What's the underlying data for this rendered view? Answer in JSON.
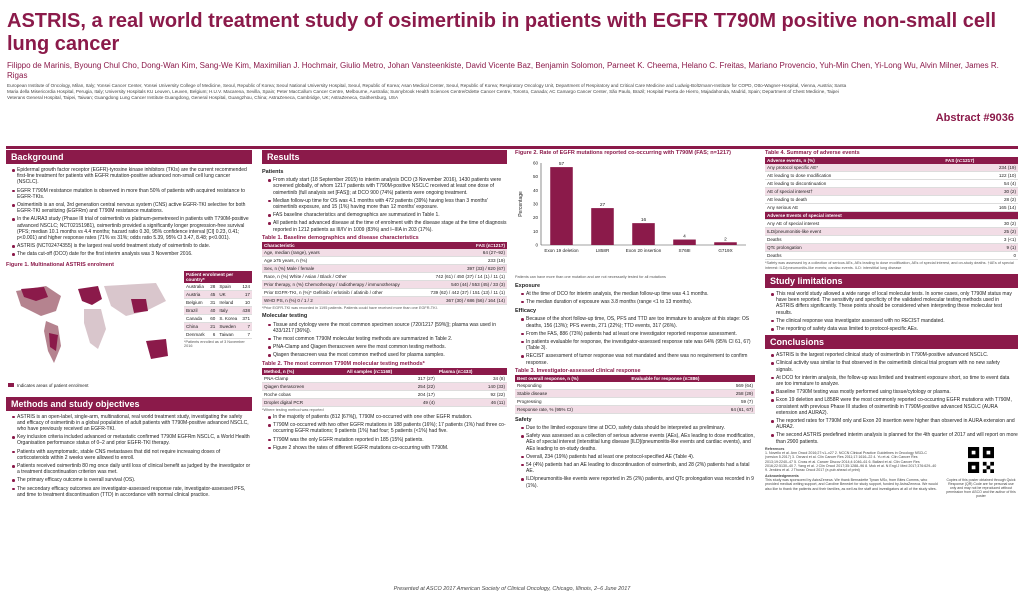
{
  "header": {
    "title": "ASTRIS, a real world treatment study of osimertinib in patients with EGFR T790M positive non-small cell lung cancer",
    "authors": "Filippo de Marinis, Byoung Chul Cho, Dong-Wan Kim, Sang-We Kim, Maximilian J. Hochmair, Giulio Metro, Johan Vansteenkiste, David Vicente Baz, Benjamin Solomon, Parneet K. Cheema, Helano C. Freitas, Mariano Provencio, Yuh-Min Chen, Yi-Long Wu, Alvin Milner, James R. Rigas",
    "affiliations": "European Institute of Oncology, Milan, Italy; Yonsei Cancer Center, Yonsei University College of Medicine, Seoul, Republic of Korea; Seoul National University Hospital, Seoul, Republic of Korea; Asan Medical Center, Seoul, Republic of Korea; Respiratory Oncology Unit, Department of Respiratory and Critical Care Medicine and Ludwig-Boltzmann-Institute for COPD, Otto-Wagner-Hospital, Vienna, Austria; Santa Maria della Misericordia Hospital, Perugia, Italy; University Hospitals KU Leuven, Leuven, Belgium; H.U.V. Macarena, Sevilla, Spain; Peter MacCallum Cancer Centre, Melbourne, Australia; Sunnybrook Health Sciences Centre/Odette Cancer Centre, Toronto, Canada; AC Camargo Cancer Center, São Paulo, Brazil; Hospital Puerta de Hierro, Majadahonda, Madrid, Spain; Department of Chest Medicine, Taipei Veterans General Hospital, Taipei, Taiwan; Guangdong Lung Cancer Institute Guangdong, General Hospital, Guangzhou, China; AstraZeneca, Cambridge, UK; AstraZeneca, Gaithersburg, USA",
    "abstract": "Abstract #9036"
  },
  "background": {
    "heading": "Background",
    "bullets": [
      "Epidermal growth factor receptor (EGFR)-tyrosine kinase inhibitors (TKIs) are the current recommended first-line treatment for patients with EGFR mutation-positive advanced non-small cell lung cancer (NSCLC).",
      "EGFR T790M resistance mutation is observed in more than 50% of patients with acquired resistance to EGFR-TKIs.",
      "Osimertinib is an oral, 3rd generation central nervous system (CNS) active EGFR-TKI selective for both EGFR-TKI sensitizing (EGFRm) and T790M resistance mutations.",
      "In the AURA3 study (Phase III trial of osimertinib vs platinum-pemetrexed in patients with T790M-positive advanced NSCLC; NCT02151981), osimertinib provided a significantly longer progression-free survival (PFS; median 10.1 months vs 4.4 months; hazard ratio 0.30, 95% confidence interval [CI] 0.23, 0.41; p<0.001) and higher response rates (71% vs 31%; odds ratio 5.39, 95% CI 3.47, 8.48; p<0.001).",
      "ASTRIS (NCT02474355) is the largest real world treatment study of osimertinib to date.",
      "The data cut-off (DCO) date for the first interim analysis was 3 November 2016."
    ]
  },
  "figure1": {
    "title": "Figure 1. Multinational ASTRIS enrolment",
    "table_header": "Patient enrolment per country*",
    "rows": [
      [
        "Australia",
        "28",
        "Spain",
        "124"
      ],
      [
        "Austria",
        "45",
        "UK",
        "17"
      ],
      [
        "Belgium",
        "31",
        "Ireland",
        "10"
      ],
      [
        "Brazil",
        "40",
        "Italy",
        "438"
      ],
      [
        "Canada",
        "60",
        "S. Korea",
        "371"
      ],
      [
        "China",
        "21",
        "Sweden",
        "7"
      ],
      [
        "Denmark",
        "6",
        "Taiwan",
        "7"
      ]
    ],
    "note": "*Patients enrolled as of 3 November 2016",
    "legend": "Indicates areas of patient enrolment"
  },
  "methods": {
    "heading": "Methods and study objectives",
    "bullets": [
      "ASTRIS is an open-label, single-arm, multinational, real world treatment study, investigating the safety and efficacy of osimertinib in a global population of adult patients with T790M-positive advanced NSCLC, who have previously received an EGFR-TKI.",
      "Key inclusion criteria included advanced or metastatic confirmed T790M EGFRm NSCLC, a World Health Organisation performance status of 0–2 and prior EGFR-TKI therapy.",
      "Patients with asymptomatic, stable CNS metastases that did not require increasing doses of corticosteroids within 2 weeks were allowed to enroll.",
      "Patients received osimertinib 80 mg once daily until loss of clinical benefit as judged by the investigator or a treatment discontinuation criterion was met.",
      "The primary efficacy outcome is overall survival (OS).",
      "The secondary efficacy outcomes are investigator-assessed response rate, investigator-assessed PFS, and time to treatment discontinuation (TTD) in accordance with normal clinical practice."
    ]
  },
  "results": {
    "heading": "Results",
    "patients_label": "Patients",
    "bullets": [
      "From study start (18 September 2015) to interim analysis DCO (3 November 2016), 1430 patients were screened globally, of whom 1217 patients with T790M-positive NSCLC received at least one dose of osimertinib (full analysis set [FAS]); at DCO 900 (74%) patients were ongoing treatment.",
      "Median follow-up time for OS was 4.1 months with 472 patients (39%) having less than 3 months' osimertinib exposure, and 15 (1%) having more than 12 months' exposure.",
      "FAS baseline characteristics and demographics are summarized in Table 1.",
      "All patients had advanced disease at the time of enrolment with the disease stage at the time of diagnosis reported in 1212 patients as III/IV in 1009 (83%) and I–IIIA in 203 (17%)."
    ]
  },
  "table1": {
    "title": "Table 1. Baseline demographics and disease characteristics",
    "col1": "Characteristic",
    "col2": "FAS (n=1217)",
    "rows": [
      [
        "Age, median (range), years",
        "64 (27–92)"
      ],
      [
        "Age ≥75 years, n (%)",
        "233 (19)"
      ],
      [
        "Sex, n (%) Male / female",
        "397 (33) / 820 (67)"
      ],
      [
        "Race, n (%) White / Asian / Black / Other",
        "742 (61) / 450 (37) / 14 (1) / 11 (1)"
      ],
      [
        "Prior therapy, n (%) Chemotherapy / radiotherapy / immunotherapy",
        "540 (44) / 553 (45) / 33 (3)"
      ],
      [
        "Prior EGFR-TKI, n (%)* Gefitinib / erlotinib / afatinib / other",
        "739 (62) / 442 (37) / 151 (13) / 11 (1)"
      ],
      [
        "WHO PS, n (%) 0 / 1 / 2",
        "367 (30) / 686 (56) / 164 (14)"
      ]
    ],
    "note": "*Prior EGFR-TKI was recorded in 1195 patients. Patients could have received more than one EGFR-TKI."
  },
  "molecular": {
    "label": "Molecular testing",
    "bullets": [
      "Tissue and cytology were the most common specimen source (720/1217 [59%]); plasma was used in 433/1217 [36%]).",
      "The most common T790M molecular testing methods are summarized in Table 2.",
      "PNA-Clamp and Qiagen therascreen were the most common testing methods.",
      "Qiagen therascreen was the most common method used for plasma samples."
    ]
  },
  "table2": {
    "title": "Table 2. The most common T790M molecular testing methods*",
    "cols": [
      "Method, n (%)",
      "All samples (n=1168)",
      "Plasma (n=433)"
    ],
    "rows": [
      [
        "PNA-Clamp",
        "317 (27)",
        "34 (8)"
      ],
      [
        "Qiagen therascreen",
        "254 (22)",
        "140 (33)"
      ],
      [
        "Roche cobas",
        "204 (17)",
        "92 (22)"
      ],
      [
        "Droplet digital PCR",
        "49 (4)",
        "46 (11)"
      ]
    ],
    "note": "*Where testing method was reported"
  },
  "t790": {
    "bullets": [
      "In the majority of patients (812 [67%]), T790M co-occurred with one other EGFR mutation.",
      "T790M co-occurred with two other EGFR mutations in 188 patients (16%); 17 patients (1%) had three co-occurring EGFR mutations; 9 patients (1%) had four; 5 patients (<1%) had five.",
      "T790M was the only EGFR mutation reported in 185 (15%) patients.",
      "Figure 2 shows the rates of different EGFR mutations co-occurring with T790M."
    ]
  },
  "chart_data": {
    "type": "bar",
    "title": "Figure 2. Rate of EGFR mutations reported co-occurring with T790M (FAS; n=1217)",
    "categories": [
      "Exon 19 deletion",
      "L858R",
      "Exon 20 insertion",
      "S768I",
      "G719X"
    ],
    "values": [
      57,
      27,
      16,
      4,
      2
    ],
    "ylabel": "Percentage",
    "ylim": [
      0,
      60
    ],
    "yticks": [
      0,
      10,
      20,
      30,
      40,
      50,
      60
    ],
    "color": "#8b1a4a",
    "note": "Patients can have more than one mutation and are not necessarily tested for all mutations"
  },
  "exposure": {
    "label": "Exposure",
    "bullets": [
      "At the time of DCO for interim analysis, the median follow-up time was 4.1 months.",
      "The median duration of exposure was 3.8 months (range <1 to 13 months)."
    ]
  },
  "efficacy": {
    "label": "Efficacy",
    "bullets": [
      "Because of the short follow-up time, OS, PFS and TTD are too immature to analyze at this stage: OS deaths, 156 (13%); PFS events, 271 (22%); TTD events, 317 (26%).",
      "From the FAS, 886 (73%) patients had at least one investigator reported response assessment.",
      "In patients evaluable for response, the investigator-assessed response rate was 64% (95% CI 61, 67) (Table 3).",
      "RECIST assessment of tumor response was not mandated and there was no requirement to confirm response."
    ]
  },
  "table3": {
    "title": "Table 3. Investigator-assessed clinical response",
    "cols": [
      "Best overall response, n (%)",
      "Evaluable for response (n=886)"
    ],
    "rows": [
      [
        "Responding",
        "569 (64)"
      ],
      [
        "Stable disease",
        "258 (29)"
      ],
      [
        "Progressing",
        "59 (7)"
      ],
      [
        "Response rate, % (95% CI)",
        "64 (61, 67)"
      ]
    ]
  },
  "safety": {
    "label": "Safety",
    "bullets": [
      "Due to the limited exposure time at DCO, safety data should be interpreted as preliminary.",
      "Safety was assessed as a collection of serious adverse events (AEs), AEs leading to dose modification, AEs of special interest (interstitial lung disease [ILD]/pneumonitis-like events and cardiac events), and AEs leading to on-study deaths.",
      "Overall, 234 (19%) patients had at least one protocol-specified AE (Table 4).",
      "54 (4%) patients had an AE leading to discontinuation of osimertinib, and 28 (2%) patients had a fatal AE.",
      "ILD/pneumonitis-like events were reported in 25 (2%) patients, and QTc prolongation was recorded in 9 (1%)."
    ]
  },
  "table4": {
    "title": "Table 4. Summary of adverse events",
    "cols": [
      "Adverse events, n (%)",
      "FAS (n=1217)"
    ],
    "rows": [
      [
        "Any protocol specific AE*",
        "234 (19)",
        "alt"
      ],
      [
        "AE leading to dose modification",
        "122 (10)",
        ""
      ],
      [
        "AE leading to discontinuation",
        "54 (4)",
        ""
      ],
      [
        "AE of special interest†",
        "30 (2)",
        "alt"
      ],
      [
        "AE leading to death",
        "28 (2)",
        ""
      ],
      [
        "Any serious AE",
        "165 (14)",
        ""
      ],
      [
        "Adverse Events of special interest",
        "",
        "grp"
      ],
      [
        "Any AE of special interest",
        "30 (2)",
        ""
      ],
      [
        "ILD/pneumonitis-like event",
        "25 (2)",
        "alt"
      ],
      [
        "Deaths",
        "3 (<1)",
        ""
      ],
      [
        "QTc prolongation",
        "9 (1)",
        "alt"
      ],
      [
        "Deaths",
        "0",
        ""
      ]
    ],
    "note": "*Safety was assessed by a collection of serious AEs, AEs leading to dose modification, AEs of special interest, and on-study deaths. †AEs of special interest: ILD/pneumonitis-like events; cardiac events. ILD: interstitial lung disease"
  },
  "limitations": {
    "heading": "Study limitations",
    "bullets": [
      "This real world study allowed a wide range of local molecular tests. In some cases, only T790M status may have been reported. The sensitivity and specificity of the validated molecular testing methods used in ASTRIS differs significantly. These points should be considered when interpreting these molecular test results.",
      "The clinical response was investigator assessed with no RECIST mandated.",
      "The reporting of safety data was limited to protocol-specific AEs."
    ]
  },
  "conclusions": {
    "heading": "Conclusions",
    "bullets": [
      "ASTRIS is the largest reported clinical study of osimertinib in T790M-positive advanced NSCLC.",
      "Clinical activity was similar to that observed in the osimertinib clinical trial program with no new safety signals.",
      "At DCO for interim analysis, the follow-up was limited and treatment exposure short, so time to event data are too immature to analyze.",
      "Baseline T790M testing was mostly performed using tissue/cytology or plasma.",
      "Exon 19 deletion and L858R were the most commonly reported co-occurring EGFR mutations with T790M, consistent with previous Phase III studies of osimertinib in T790M-positive advanced NSCLC (AURA extension and AURA2).",
      "The reported rates for T790M only and Exon 20 insertion were higher than observed in AURA extension and AURA2.",
      "The second ASTRIS predefined interim analysis is planned for the 4th quarter of 2017 and will report on more than 2900 patients."
    ]
  },
  "refs": {
    "label": "References",
    "text": "1. Novello et al. Ann Oncol 2016;27:v1–v27 2. NCCN Clinical Practice Guidelines in Oncology NSCLC (version 5.2017) 3. Oxnard et al. Clin Cancer Res 2011;17:1616–22 4. Yu et al. Clin Cancer Res 2013;19:2240–47 5. Cross et al. Cancer Discov 2014;4:1046–61 6. Ballard et al. Clin Cancer Res 2016;22:5130–40 7. Yang et al. J Clin Oncol 2017;35:1288–96 8. Mok et al. N Engl J Med 2017;376:629–40 9. Jenkins et al. J Thorac Oncol 2017 (e-pub ahead of print)",
    "ack_label": "Acknowledgements",
    "ack": "This study was sponsored by AstraZeneca. We thank Bernadette Tynan MSc, from Bites Comms, who provided medical writing support, and Caroline Benedet for study support, funded by AstraZeneca. We would also like to thank the patients and their families, as well as the staff and investigators at all of the study sites.",
    "qr_text": "Copies of this poster obtained through Quick Response (QR) Code are for personal use only and may not be reproduced without permission from ASCO and the author of this poster"
  },
  "footer": "Presented at ASCO 2017 American Society of Clinical Oncology, Chicago, Illinois, 2–6 June 2017"
}
